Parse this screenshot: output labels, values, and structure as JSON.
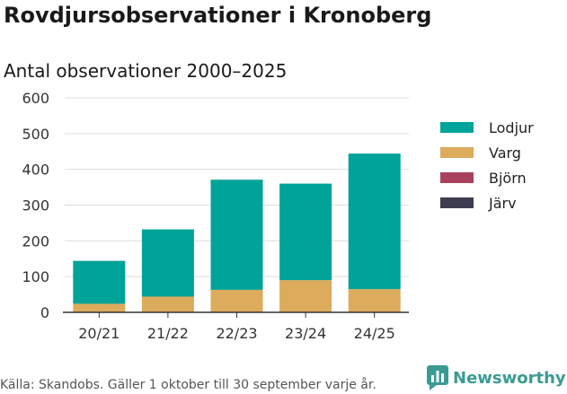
{
  "header": {
    "title": "Rovdjursobservationer i Kronoberg"
  },
  "chart_data": {
    "type": "bar",
    "stacked": true,
    "title": "Antal observationer 2000–2025",
    "xlabel": "",
    "ylabel": "",
    "categories": [
      "20/21",
      "21/22",
      "22/23",
      "23/24",
      "24/25"
    ],
    "series": [
      {
        "name": "Lodjur",
        "color": "#00a398",
        "values": [
          120,
          188,
          308,
          270,
          379
        ]
      },
      {
        "name": "Varg",
        "color": "#dcab5c",
        "values": [
          24,
          44,
          63,
          90,
          65
        ]
      },
      {
        "name": "Björn",
        "color": "#a8405e",
        "values": [
          0,
          0,
          0,
          0,
          0
        ]
      },
      {
        "name": "Järv",
        "color": "#3d3d4f",
        "values": [
          0,
          0,
          0,
          0,
          0
        ]
      }
    ],
    "stack_order_bottom_to_top": [
      "Varg",
      "Lodjur"
    ],
    "ylim": [
      0,
      600
    ],
    "yticks": [
      0,
      100,
      200,
      300,
      400,
      500,
      600
    ],
    "grid": true,
    "legend_position": "right"
  },
  "footer": {
    "source": "Källa: Skandobs. Gäller 1 oktober till 30 september varje år.",
    "brand": "Newsworthy",
    "brand_color": "#3b9b93"
  }
}
